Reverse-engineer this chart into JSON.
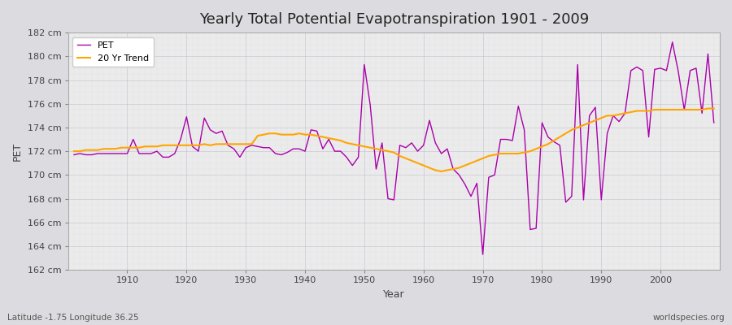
{
  "title": "Yearly Total Potential Evapotranspiration 1901 - 2009",
  "xlabel": "Year",
  "ylabel": "PET",
  "subtitle_left": "Latitude -1.75 Longitude 36.25",
  "subtitle_right": "worldspecies.org",
  "pet_color": "#AA00AA",
  "trend_color": "#FFA500",
  "plot_bg_color": "#EBEBEB",
  "fig_bg_color": "#DCDCE0",
  "ylim": [
    162,
    182
  ],
  "ytick_step": 2,
  "years": [
    1901,
    1902,
    1903,
    1904,
    1905,
    1906,
    1907,
    1908,
    1909,
    1910,
    1911,
    1912,
    1913,
    1914,
    1915,
    1916,
    1917,
    1918,
    1919,
    1920,
    1921,
    1922,
    1923,
    1924,
    1925,
    1926,
    1927,
    1928,
    1929,
    1930,
    1931,
    1932,
    1933,
    1934,
    1935,
    1936,
    1937,
    1938,
    1939,
    1940,
    1941,
    1942,
    1943,
    1944,
    1945,
    1946,
    1947,
    1948,
    1949,
    1950,
    1951,
    1952,
    1953,
    1954,
    1955,
    1956,
    1957,
    1958,
    1959,
    1960,
    1961,
    1962,
    1963,
    1964,
    1965,
    1966,
    1967,
    1968,
    1969,
    1970,
    1971,
    1972,
    1973,
    1974,
    1975,
    1976,
    1977,
    1978,
    1979,
    1980,
    1981,
    1982,
    1983,
    1984,
    1985,
    1986,
    1987,
    1988,
    1989,
    1990,
    1991,
    1992,
    1993,
    1994,
    1995,
    1996,
    1997,
    1998,
    1999,
    2000,
    2001,
    2002,
    2003,
    2004,
    2005,
    2006,
    2007,
    2008,
    2009
  ],
  "pet_values": [
    171.7,
    171.8,
    171.7,
    171.7,
    171.8,
    171.8,
    171.8,
    171.8,
    171.8,
    171.8,
    173.0,
    171.8,
    171.8,
    171.8,
    172.0,
    171.5,
    171.5,
    171.8,
    173.0,
    174.9,
    172.4,
    172.0,
    174.8,
    173.8,
    173.5,
    173.7,
    172.5,
    172.2,
    171.5,
    172.3,
    172.5,
    172.4,
    172.3,
    172.3,
    171.8,
    171.7,
    171.9,
    172.2,
    172.2,
    172.0,
    173.8,
    173.7,
    172.2,
    173.0,
    172.0,
    172.0,
    171.5,
    170.8,
    171.5,
    179.3,
    175.9,
    170.5,
    172.7,
    168.0,
    167.9,
    172.5,
    172.3,
    172.7,
    172.0,
    172.5,
    174.6,
    172.7,
    171.8,
    172.2,
    170.5,
    170.0,
    169.2,
    168.2,
    169.3,
    163.3,
    169.8,
    170.0,
    173.0,
    173.0,
    172.9,
    175.8,
    173.8,
    165.4,
    165.5,
    174.4,
    173.2,
    172.8,
    172.5,
    167.7,
    168.2,
    179.3,
    167.9,
    175.0,
    175.7,
    167.9,
    173.5,
    175.0,
    174.5,
    175.2,
    178.8,
    179.1,
    178.8,
    173.2,
    178.9,
    179.0,
    178.8,
    181.2,
    178.7,
    175.5,
    178.8,
    179.0,
    175.2,
    180.2,
    174.4
  ],
  "trend_values": [
    172.0,
    172.0,
    172.1,
    172.1,
    172.1,
    172.2,
    172.2,
    172.2,
    172.3,
    172.3,
    172.3,
    172.3,
    172.4,
    172.4,
    172.4,
    172.5,
    172.5,
    172.5,
    172.5,
    172.5,
    172.5,
    172.5,
    172.6,
    172.5,
    172.6,
    172.6,
    172.6,
    172.6,
    172.6,
    172.6,
    172.6,
    173.3,
    173.4,
    173.5,
    173.5,
    173.4,
    173.4,
    173.4,
    173.5,
    173.4,
    173.4,
    173.3,
    173.2,
    173.1,
    173.0,
    172.9,
    172.7,
    172.6,
    172.5,
    172.4,
    172.3,
    172.2,
    172.1,
    172.0,
    171.9,
    171.6,
    171.4,
    171.2,
    171.0,
    170.8,
    170.6,
    170.4,
    170.3,
    170.4,
    170.5,
    170.6,
    170.8,
    171.0,
    171.2,
    171.4,
    171.6,
    171.7,
    171.8,
    171.8,
    171.8,
    171.8,
    171.9,
    172.0,
    172.2,
    172.4,
    172.6,
    172.9,
    173.2,
    173.5,
    173.8,
    174.0,
    174.2,
    174.4,
    174.6,
    174.8,
    175.0,
    175.0,
    175.1,
    175.2,
    175.3,
    175.4,
    175.4,
    175.4,
    175.5,
    175.5,
    175.5,
    175.5,
    175.5,
    175.5,
    175.5,
    175.5,
    175.5,
    175.6,
    175.6
  ]
}
